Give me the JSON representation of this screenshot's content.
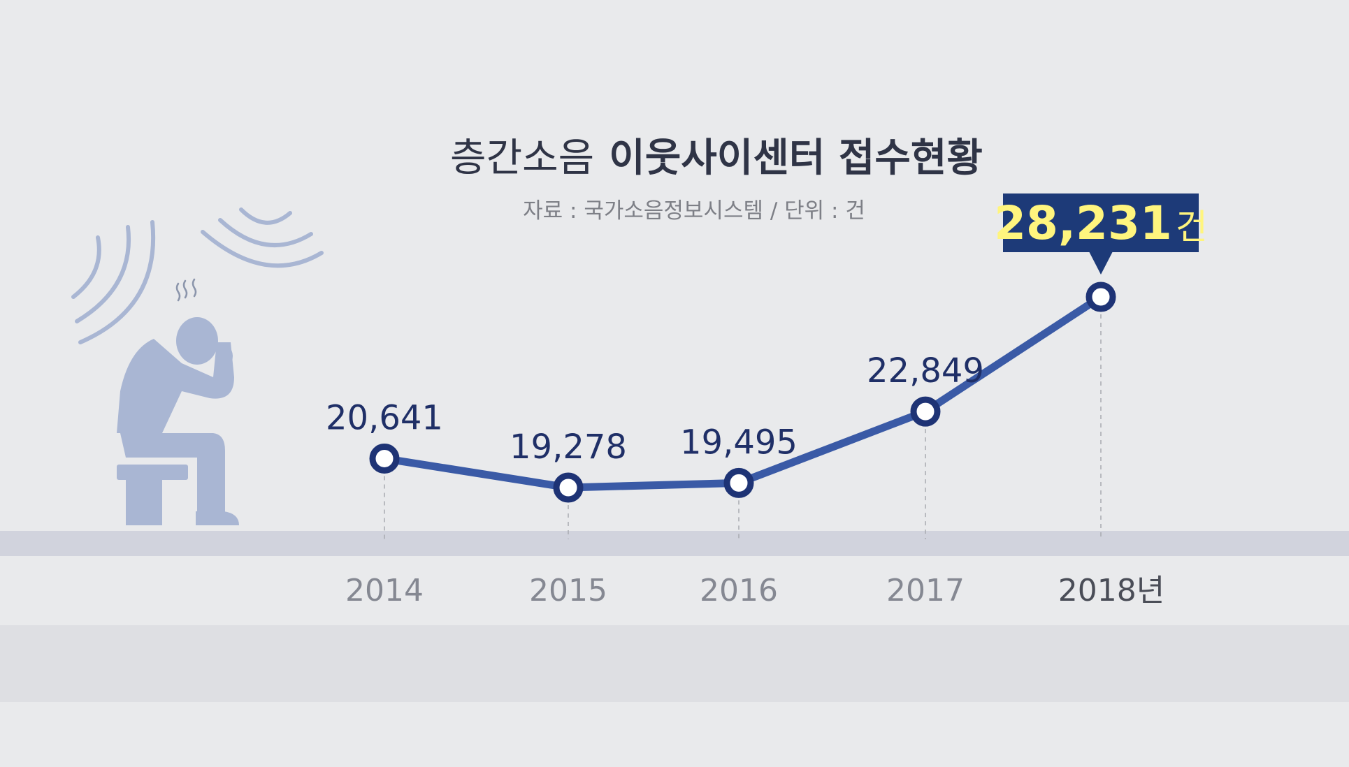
{
  "title_part1": "층간소음",
  "title_part2": "이웃사이센터 접수현황",
  "subtitle": "자료 : 국가소음정보시스템 / 단위 : 건",
  "colors": {
    "background": "#e9eaec",
    "floor": "#cfd1db",
    "line": "#3a5aa6",
    "label": "#1f2f67",
    "callout_bg": "#1d3a78",
    "callout_text": "#fff57e",
    "figure": "#a9b6d3"
  },
  "chart_data": {
    "type": "line",
    "title": "층간소음 이웃사이센터 접수현황",
    "subtitle": "자료 : 국가소음정보시스템 / 단위 : 건",
    "categories": [
      "2014",
      "2015",
      "2016",
      "2017",
      "2018년"
    ],
    "values": [
      20641,
      19278,
      19495,
      22849,
      28231
    ],
    "value_labels": [
      "20,641",
      "19,278",
      "19,495",
      "22,849",
      "28,231"
    ],
    "highlight": {
      "index": 4,
      "number": "28,231",
      "unit": "건"
    },
    "grid": false,
    "legend": "none"
  }
}
